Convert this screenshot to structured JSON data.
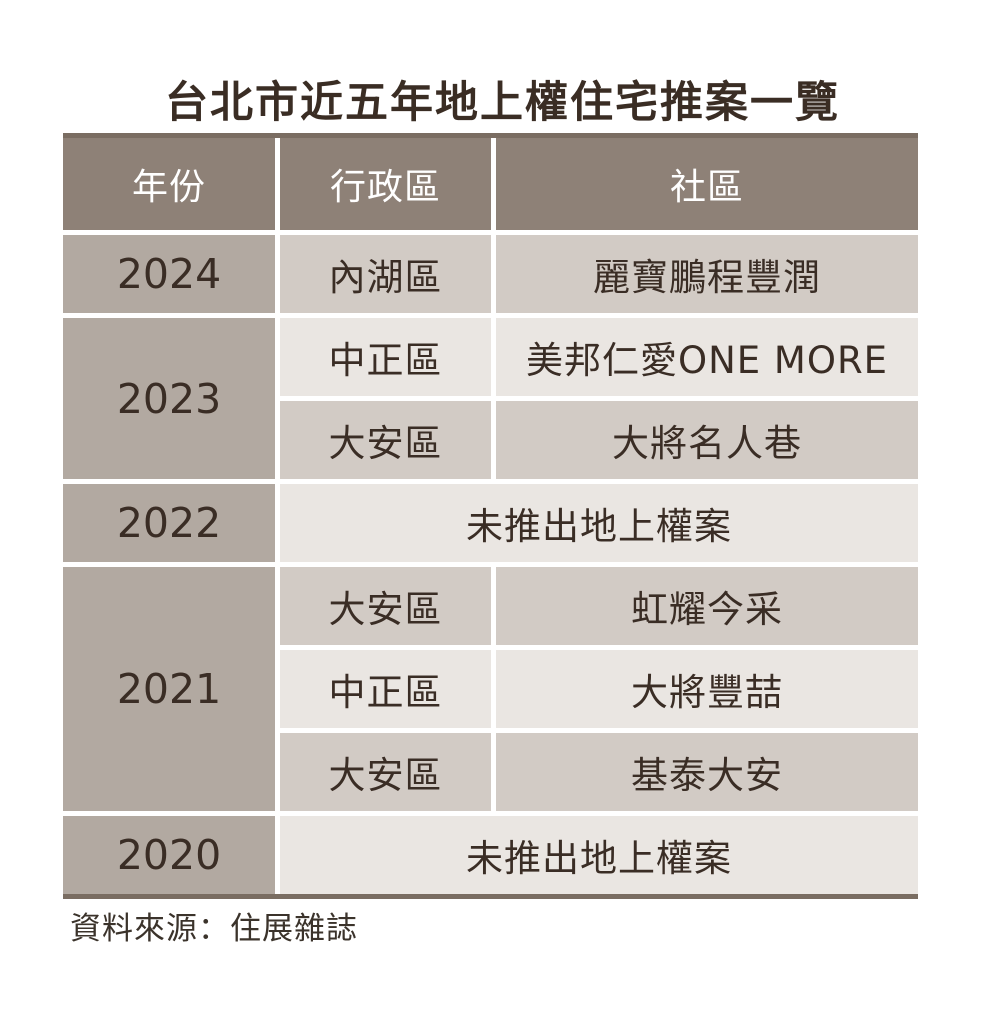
{
  "title": "台北市近五年地上權住宅推案一覽",
  "source_note": "資料來源：住展雜誌",
  "colors": {
    "header_bg": "#8e8177",
    "header_text": "#ffffff",
    "year_cell_bg": "#b2a9a1",
    "row_dark_bg": "#d2cbc5",
    "row_light_bg": "#eae6e2",
    "table_border": "#7a6d62",
    "text_dark": "#3a2d25",
    "page_bg": "#ffffff"
  },
  "table": {
    "headers": [
      "年份",
      "行政區",
      "社區"
    ],
    "groups": [
      {
        "year": "2024",
        "rows": [
          {
            "district": "內湖區",
            "community": "麗寶鵬程豐潤"
          }
        ]
      },
      {
        "year": "2023",
        "rows": [
          {
            "district": "中正區",
            "community": "美邦仁愛ONE MORE"
          },
          {
            "district": "大安區",
            "community": "大將名人巷"
          }
        ]
      },
      {
        "year": "2022",
        "rows": [
          {
            "merged": "未推出地上權案"
          }
        ]
      },
      {
        "year": "2021",
        "rows": [
          {
            "district": "大安區",
            "community": "虹耀今采"
          },
          {
            "district": "中正區",
            "community": "大將豐喆"
          },
          {
            "district": "大安區",
            "community": "基泰大安"
          }
        ]
      },
      {
        "year": "2020",
        "rows": [
          {
            "merged": "未推出地上權案"
          }
        ]
      }
    ]
  },
  "chart_data": {
    "type": "table",
    "title": "台北市近五年地上權住宅推案一覽",
    "columns": [
      "年份",
      "行政區",
      "社區"
    ],
    "rows": [
      [
        "2024",
        "內湖區",
        "麗寶鵬程豐潤"
      ],
      [
        "2023",
        "中正區",
        "美邦仁愛ONE MORE"
      ],
      [
        "2023",
        "大安區",
        "大將名人巷"
      ],
      [
        "2022",
        "未推出地上權案",
        "未推出地上權案"
      ],
      [
        "2021",
        "大安區",
        "虹耀今采"
      ],
      [
        "2021",
        "中正區",
        "大將豐喆"
      ],
      [
        "2021",
        "大安區",
        "基泰大安"
      ],
      [
        "2020",
        "未推出地上權案",
        "未推出地上權案"
      ]
    ],
    "merged_full_width_rows": [
      3,
      7
    ],
    "source": "資料來源：住展雜誌",
    "notes": "年份欄依年度合併儲存格；2022與2020年無推案，行政區與社區欄合併顯示「未推出地上權案」"
  }
}
